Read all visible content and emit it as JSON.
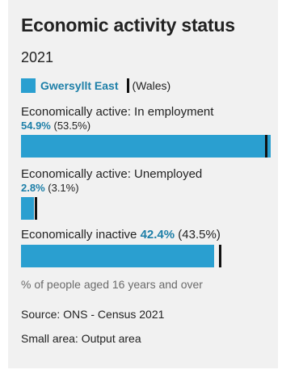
{
  "colors": {
    "area": "#2a9fd0",
    "area_text": "#1d7fa8",
    "comparison_marker": "#111111",
    "background": "#f1f1f1"
  },
  "chart_data": {
    "type": "bar",
    "title": "Economic activity status",
    "subtitle": "2021",
    "legend": {
      "area": "Gwersyllt East",
      "comparison": "(Wales)"
    },
    "xlim": [
      0,
      55
    ],
    "rows": [
      {
        "label": "Economically active: In employment",
        "value": 54.9,
        "value_text": "54.9%",
        "comparison": 53.5,
        "comparison_text": "(53.5%)"
      },
      {
        "label": "Economically active: Unemployed",
        "value": 2.8,
        "value_text": "2.8%",
        "comparison": 3.1,
        "comparison_text": "(3.1%)"
      },
      {
        "label": "Economically inactive",
        "value": 42.4,
        "value_text": "42.4%",
        "comparison": 43.5,
        "comparison_text": "(43.5%)"
      }
    ],
    "note": "% of people aged 16 years and over",
    "source": "Source: ONS - Census 2021",
    "small_area": "Small area: Output area"
  }
}
